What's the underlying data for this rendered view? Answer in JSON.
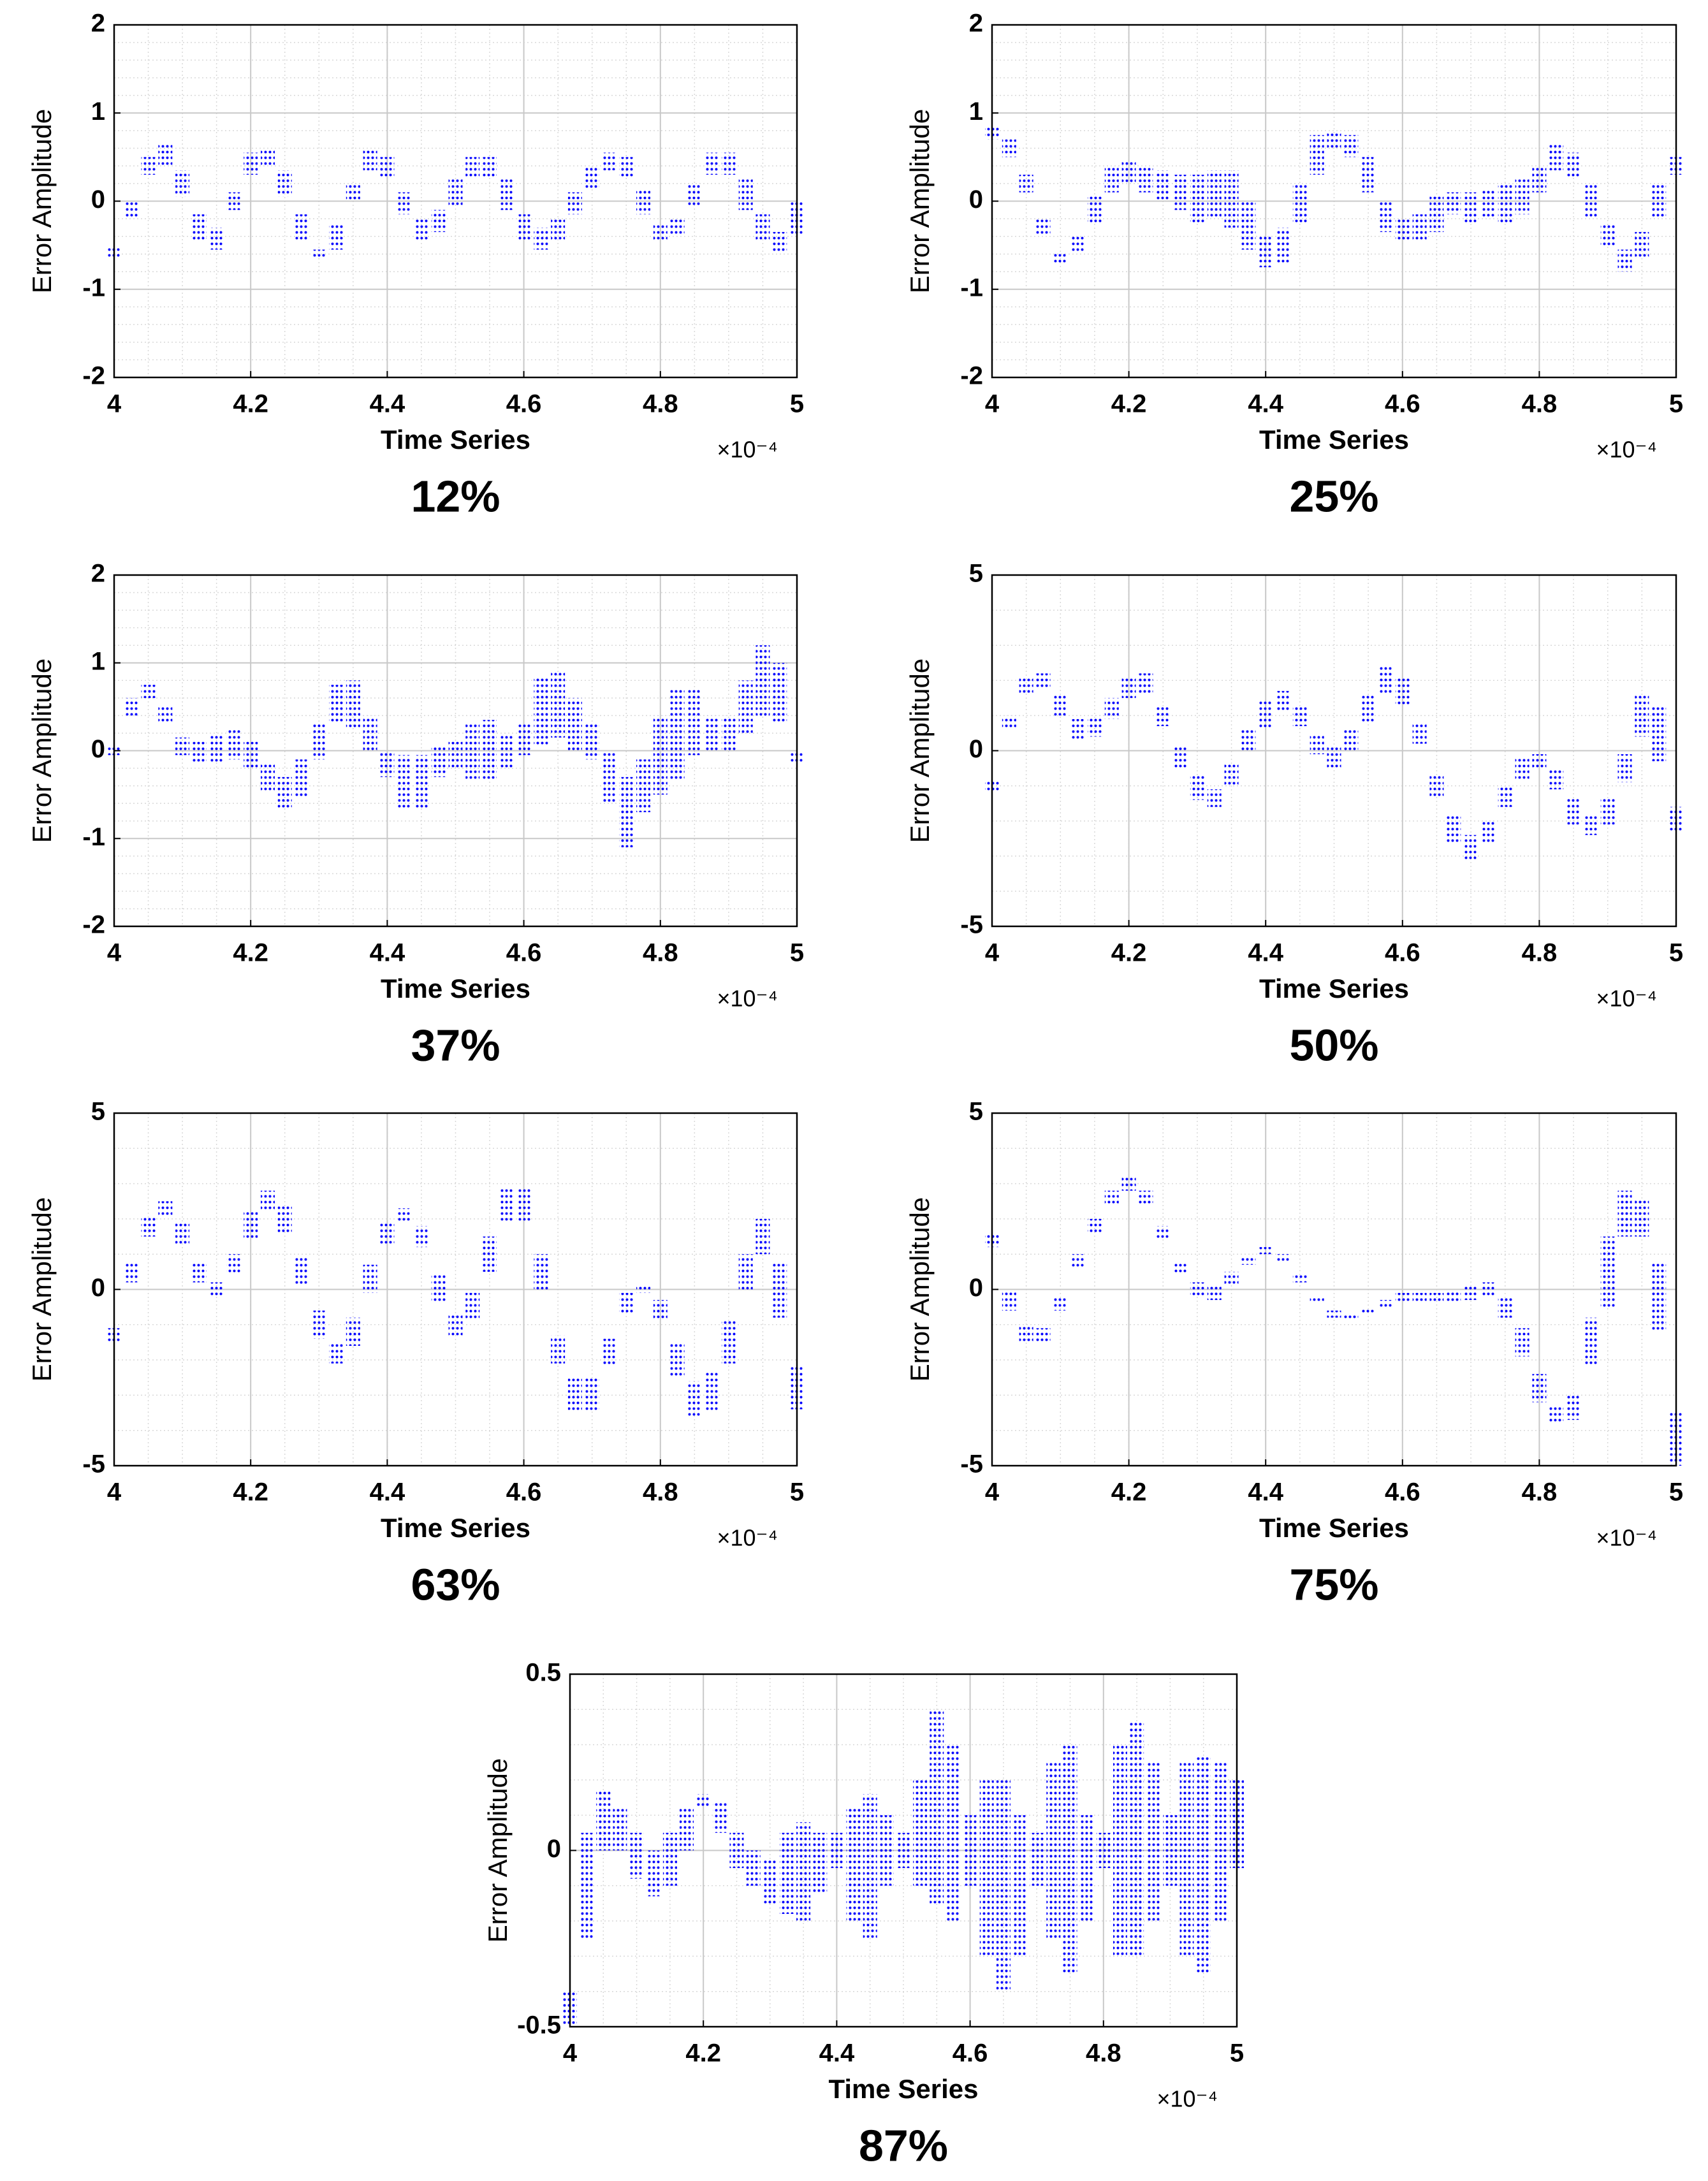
{
  "chart_data": [
    {
      "type": "range",
      "title": "12%",
      "x_label": "Time Series",
      "y_label": "Error Amplitude",
      "x_multiplier": "×10⁻⁴",
      "xlim": [
        4,
        5
      ],
      "xticks": [
        4,
        4.2,
        4.4,
        4.6,
        4.8,
        5
      ],
      "ylim": [
        -2,
        2
      ],
      "yticks": [
        -2,
        -1,
        0,
        1,
        2
      ],
      "grid": true,
      "minor_grid": true,
      "x": [
        4,
        4.025,
        4.05,
        4.075,
        4.1,
        4.125,
        4.15,
        4.175,
        4.2,
        4.225,
        4.25,
        4.275,
        4.3,
        4.325,
        4.35,
        4.375,
        4.4,
        4.425,
        4.45,
        4.475,
        4.5,
        4.525,
        4.55,
        4.575,
        4.6,
        4.625,
        4.65,
        4.675,
        4.7,
        4.725,
        4.75,
        4.775,
        4.8,
        4.825,
        4.85,
        4.875,
        4.9,
        4.925,
        4.95,
        4.975,
        5
      ],
      "series": [
        {
          "color": "#0000ff",
          "low": [
            -0.65,
            -0.2,
            0.3,
            0.4,
            0.05,
            -0.45,
            -0.55,
            -0.1,
            0.3,
            0.4,
            0.05,
            -0.45,
            -0.65,
            -0.55,
            0.0,
            0.35,
            0.25,
            -0.15,
            -0.45,
            -0.35,
            -0.05,
            0.25,
            0.25,
            -0.1,
            -0.45,
            -0.55,
            -0.45,
            -0.15,
            0.15,
            0.35,
            0.25,
            -0.15,
            -0.45,
            -0.4,
            -0.05,
            0.3,
            0.3,
            -0.1,
            -0.45,
            -0.6,
            -0.4
          ],
          "high": [
            -0.5,
            0.0,
            0.5,
            0.65,
            0.35,
            -0.15,
            -0.3,
            0.1,
            0.55,
            0.6,
            0.35,
            -0.15,
            -0.55,
            -0.25,
            0.2,
            0.6,
            0.5,
            0.1,
            -0.2,
            -0.1,
            0.25,
            0.5,
            0.5,
            0.25,
            -0.15,
            -0.3,
            -0.2,
            0.1,
            0.4,
            0.55,
            0.5,
            0.15,
            -0.25,
            -0.2,
            0.2,
            0.55,
            0.55,
            0.25,
            -0.15,
            -0.35,
            0.0
          ]
        }
      ]
    },
    {
      "type": "range",
      "title": "25%",
      "x_label": "Time Series",
      "y_label": "Error Amplitude",
      "x_multiplier": "×10⁻⁴",
      "xlim": [
        4,
        5
      ],
      "xticks": [
        4,
        4.2,
        4.4,
        4.6,
        4.8,
        5
      ],
      "ylim": [
        -2,
        2
      ],
      "yticks": [
        -2,
        -1,
        0,
        1,
        2
      ],
      "grid": true,
      "minor_grid": true,
      "x": [
        4,
        4.025,
        4.05,
        4.075,
        4.1,
        4.125,
        4.15,
        4.175,
        4.2,
        4.225,
        4.25,
        4.275,
        4.3,
        4.325,
        4.35,
        4.375,
        4.4,
        4.425,
        4.45,
        4.475,
        4.5,
        4.525,
        4.55,
        4.575,
        4.6,
        4.625,
        4.65,
        4.675,
        4.7,
        4.725,
        4.75,
        4.775,
        4.8,
        4.825,
        4.85,
        4.875,
        4.9,
        4.925,
        4.95,
        4.975,
        5
      ],
      "series": [
        {
          "color": "#0000ff",
          "low": [
            0.7,
            0.5,
            0.1,
            -0.4,
            -0.7,
            -0.6,
            -0.25,
            0.1,
            0.2,
            0.1,
            0.0,
            -0.1,
            -0.25,
            -0.2,
            -0.3,
            -0.55,
            -0.75,
            -0.7,
            -0.25,
            0.3,
            0.6,
            0.5,
            0.1,
            -0.35,
            -0.45,
            -0.45,
            -0.35,
            -0.15,
            -0.25,
            -0.2,
            -0.25,
            -0.15,
            0.1,
            0.35,
            0.25,
            -0.2,
            -0.5,
            -0.8,
            -0.65,
            -0.2,
            0.3
          ],
          "high": [
            0.85,
            0.7,
            0.3,
            -0.2,
            -0.6,
            -0.4,
            0.05,
            0.4,
            0.45,
            0.4,
            0.35,
            0.3,
            0.3,
            0.35,
            0.35,
            0.0,
            -0.4,
            -0.3,
            0.2,
            0.75,
            0.8,
            0.75,
            0.5,
            0.0,
            -0.2,
            -0.15,
            0.05,
            0.1,
            0.1,
            0.15,
            0.2,
            0.25,
            0.4,
            0.65,
            0.55,
            0.2,
            -0.25,
            -0.55,
            -0.35,
            0.2,
            0.5
          ]
        }
      ]
    },
    {
      "type": "range",
      "title": "37%",
      "x_label": "Time Series",
      "y_label": "Error Amplitude",
      "x_multiplier": "×10⁻⁴",
      "xlim": [
        4,
        5
      ],
      "xticks": [
        4,
        4.2,
        4.4,
        4.6,
        4.8,
        5
      ],
      "ylim": [
        -2,
        2
      ],
      "yticks": [
        -2,
        -1,
        0,
        1,
        2
      ],
      "grid": true,
      "minor_grid": true,
      "x": [
        4,
        4.025,
        4.05,
        4.075,
        4.1,
        4.125,
        4.15,
        4.175,
        4.2,
        4.225,
        4.25,
        4.275,
        4.3,
        4.325,
        4.35,
        4.375,
        4.4,
        4.425,
        4.45,
        4.475,
        4.5,
        4.525,
        4.55,
        4.575,
        4.6,
        4.625,
        4.65,
        4.675,
        4.7,
        4.725,
        4.75,
        4.775,
        4.8,
        4.825,
        4.85,
        4.875,
        4.9,
        4.925,
        4.95,
        4.975,
        5
      ],
      "series": [
        {
          "color": "#0000ff",
          "low": [
            -0.05,
            0.4,
            0.6,
            0.3,
            -0.05,
            -0.15,
            -0.15,
            -0.1,
            -0.2,
            -0.45,
            -0.65,
            -0.55,
            -0.1,
            0.3,
            0.25,
            0.0,
            -0.3,
            -0.65,
            -0.65,
            -0.3,
            -0.2,
            -0.35,
            -0.35,
            -0.2,
            -0.05,
            0.05,
            0.15,
            0.0,
            -0.1,
            -0.6,
            -1.1,
            -0.7,
            -0.5,
            -0.35,
            -0.05,
            0.0,
            0.0,
            0.2,
            0.4,
            0.3,
            -0.15
          ],
          "high": [
            0.05,
            0.6,
            0.75,
            0.5,
            0.15,
            0.1,
            0.2,
            0.25,
            0.1,
            -0.15,
            -0.3,
            -0.1,
            0.3,
            0.75,
            0.8,
            0.4,
            0.0,
            -0.05,
            -0.05,
            0.05,
            0.1,
            0.3,
            0.35,
            0.2,
            0.3,
            0.85,
            0.9,
            0.6,
            0.3,
            0.0,
            -0.3,
            -0.1,
            0.4,
            0.7,
            0.7,
            0.4,
            0.4,
            0.8,
            1.2,
            1.0,
            0.0
          ]
        }
      ]
    },
    {
      "type": "range",
      "title": "50%",
      "x_label": "Time Series",
      "y_label": "Error Amplitude",
      "x_multiplier": "×10⁻⁴",
      "xlim": [
        4,
        5
      ],
      "xticks": [
        4,
        4.2,
        4.4,
        4.6,
        4.8,
        5
      ],
      "ylim": [
        -5,
        5
      ],
      "yticks": [
        -5,
        0,
        5
      ],
      "grid": true,
      "minor_grid": true,
      "x": [
        4,
        4.025,
        4.05,
        4.075,
        4.1,
        4.125,
        4.15,
        4.175,
        4.2,
        4.225,
        4.25,
        4.275,
        4.3,
        4.325,
        4.35,
        4.375,
        4.4,
        4.425,
        4.45,
        4.475,
        4.5,
        4.525,
        4.55,
        4.575,
        4.6,
        4.625,
        4.65,
        4.675,
        4.7,
        4.725,
        4.75,
        4.775,
        4.8,
        4.825,
        4.85,
        4.875,
        4.9,
        4.925,
        4.95,
        4.975,
        5
      ],
      "series": [
        {
          "color": "#0000ff",
          "low": [
            -1.2,
            0.6,
            1.6,
            1.8,
            1.0,
            0.3,
            0.4,
            0.9,
            1.5,
            1.6,
            0.7,
            -0.5,
            -1.4,
            -1.6,
            -1.0,
            0.0,
            0.6,
            1.1,
            0.7,
            -0.1,
            -0.5,
            0.0,
            0.8,
            1.6,
            1.3,
            0.2,
            -1.3,
            -2.6,
            -3.1,
            -2.6,
            -1.6,
            -0.8,
            -0.5,
            -1.1,
            -2.1,
            -2.4,
            -2.1,
            -0.9,
            0.4,
            -0.3,
            -2.3
          ],
          "high": [
            -0.8,
            1.0,
            2.1,
            2.2,
            1.6,
            0.9,
            1.0,
            1.5,
            2.1,
            2.2,
            1.3,
            0.1,
            -0.7,
            -1.1,
            -0.4,
            0.6,
            1.4,
            1.7,
            1.3,
            0.5,
            0.1,
            0.6,
            1.6,
            2.4,
            2.1,
            0.8,
            -0.7,
            -1.8,
            -2.4,
            -2.0,
            -1.0,
            -0.2,
            -0.1,
            -0.5,
            -1.3,
            -1.8,
            -1.3,
            -0.1,
            1.6,
            1.3,
            -1.6
          ]
        }
      ]
    },
    {
      "type": "range",
      "title": "63%",
      "x_label": "Time Series",
      "y_label": "Error Amplitude",
      "x_multiplier": "×10⁻⁴",
      "xlim": [
        4,
        5
      ],
      "xticks": [
        4,
        4.2,
        4.4,
        4.6,
        4.8,
        5
      ],
      "ylim": [
        -5,
        5
      ],
      "yticks": [
        -5,
        0,
        5
      ],
      "grid": true,
      "minor_grid": true,
      "x": [
        4,
        4.025,
        4.05,
        4.075,
        4.1,
        4.125,
        4.15,
        4.175,
        4.2,
        4.225,
        4.25,
        4.275,
        4.3,
        4.325,
        4.35,
        4.375,
        4.4,
        4.425,
        4.45,
        4.475,
        4.5,
        4.525,
        4.55,
        4.575,
        4.6,
        4.625,
        4.65,
        4.675,
        4.7,
        4.725,
        4.75,
        4.775,
        4.8,
        4.825,
        4.85,
        4.875,
        4.9,
        4.925,
        4.95,
        4.975,
        5
      ],
      "series": [
        {
          "color": "#0000ff",
          "low": [
            -1.5,
            0.2,
            1.5,
            2.1,
            1.3,
            0.2,
            -0.2,
            0.4,
            1.4,
            2.2,
            1.6,
            0.1,
            -1.4,
            -2.1,
            -1.6,
            -0.1,
            1.3,
            1.9,
            1.2,
            -0.4,
            -1.3,
            -0.9,
            0.5,
            1.9,
            1.9,
            0.0,
            -2.1,
            -3.5,
            -3.5,
            -2.2,
            -0.7,
            -0.1,
            -0.9,
            -2.5,
            -3.6,
            -3.5,
            -2.1,
            0.0,
            1.0,
            -0.8,
            -3.4
          ],
          "high": [
            -1.1,
            0.8,
            2.1,
            2.5,
            1.9,
            0.8,
            0.2,
            1.0,
            2.2,
            2.8,
            2.4,
            0.9,
            -0.6,
            -1.5,
            -0.8,
            0.7,
            1.9,
            2.3,
            1.8,
            0.4,
            -0.7,
            -0.1,
            1.5,
            2.9,
            2.9,
            1.0,
            -1.3,
            -2.5,
            -2.5,
            -1.4,
            -0.1,
            0.1,
            -0.3,
            -1.5,
            -2.6,
            -2.3,
            -0.9,
            1.0,
            2.0,
            0.8,
            -2.2
          ]
        }
      ]
    },
    {
      "type": "range",
      "title": "75%",
      "x_label": "Time Series",
      "y_label": "Error Amplitude",
      "x_multiplier": "×10⁻⁴",
      "xlim": [
        4,
        5
      ],
      "xticks": [
        4,
        4.2,
        4.4,
        4.6,
        4.8,
        5
      ],
      "ylim": [
        -5,
        5
      ],
      "yticks": [
        -5,
        0,
        5
      ],
      "grid": true,
      "minor_grid": true,
      "x": [
        4,
        4.025,
        4.05,
        4.075,
        4.1,
        4.125,
        4.15,
        4.175,
        4.2,
        4.225,
        4.25,
        4.275,
        4.3,
        4.325,
        4.35,
        4.375,
        4.4,
        4.425,
        4.45,
        4.475,
        4.5,
        4.525,
        4.55,
        4.575,
        4.6,
        4.625,
        4.65,
        4.675,
        4.7,
        4.725,
        4.75,
        4.775,
        4.8,
        4.825,
        4.85,
        4.875,
        4.9,
        4.925,
        4.95,
        4.975,
        5
      ],
      "series": [
        {
          "color": "#0000ff",
          "low": [
            1.2,
            -0.6,
            -1.5,
            -1.5,
            -0.6,
            0.6,
            1.6,
            2.4,
            2.8,
            2.4,
            1.4,
            0.4,
            -0.2,
            -0.3,
            0.1,
            0.7,
            1.0,
            0.8,
            0.2,
            -0.4,
            -0.8,
            -0.9,
            -0.7,
            -0.5,
            -0.4,
            -0.4,
            -0.4,
            -0.4,
            -0.3,
            -0.2,
            -0.8,
            -1.9,
            -3.2,
            -3.8,
            -3.7,
            -2.2,
            -0.5,
            1.5,
            1.5,
            -1.2,
            -5.0
          ],
          "high": [
            1.6,
            0.0,
            -1.0,
            -1.1,
            -0.2,
            1.0,
            2.0,
            2.8,
            3.2,
            2.8,
            1.8,
            0.8,
            0.2,
            0.1,
            0.5,
            0.9,
            1.2,
            1.0,
            0.4,
            -0.2,
            -0.6,
            -0.7,
            -0.5,
            -0.3,
            -0.1,
            -0.1,
            -0.1,
            -0.05,
            0.1,
            0.2,
            -0.2,
            -1.1,
            -2.4,
            -3.3,
            -3.0,
            -0.8,
            1.5,
            2.8,
            2.6,
            0.8,
            -3.5
          ]
        }
      ]
    },
    {
      "type": "range",
      "title": "87%",
      "x_label": "Time Series",
      "y_label": "Error Amplitude",
      "x_multiplier": "×10⁻⁴",
      "xlim": [
        4,
        5
      ],
      "xticks": [
        4,
        4.2,
        4.4,
        4.6,
        4.8,
        5
      ],
      "ylim": [
        -0.5,
        0.5
      ],
      "yticks": [
        -0.5,
        0,
        0.5
      ],
      "grid": true,
      "minor_grid": true,
      "x": [
        4,
        4.025,
        4.05,
        4.075,
        4.1,
        4.125,
        4.15,
        4.175,
        4.2,
        4.225,
        4.25,
        4.275,
        4.3,
        4.325,
        4.35,
        4.375,
        4.4,
        4.425,
        4.45,
        4.475,
        4.5,
        4.525,
        4.55,
        4.575,
        4.6,
        4.625,
        4.65,
        4.675,
        4.7,
        4.725,
        4.75,
        4.775,
        4.8,
        4.825,
        4.85,
        4.875,
        4.9,
        4.925,
        4.95,
        4.975,
        5
      ],
      "series": [
        {
          "color": "#0000ff",
          "low": [
            -0.5,
            -0.25,
            0.0,
            0.0,
            -0.08,
            -0.13,
            -0.1,
            0.0,
            0.12,
            0.05,
            -0.05,
            -0.1,
            -0.15,
            -0.18,
            -0.2,
            -0.12,
            -0.05,
            -0.2,
            -0.25,
            -0.1,
            -0.05,
            -0.1,
            -0.15,
            -0.2,
            -0.1,
            -0.3,
            -0.4,
            -0.3,
            -0.1,
            -0.25,
            -0.35,
            -0.2,
            -0.05,
            -0.3,
            -0.3,
            -0.2,
            -0.1,
            -0.3,
            -0.35,
            -0.2,
            -0.05
          ],
          "high": [
            -0.4,
            0.05,
            0.17,
            0.12,
            0.05,
            0.0,
            0.05,
            0.12,
            0.16,
            0.14,
            0.05,
            0.0,
            -0.02,
            0.05,
            0.08,
            0.05,
            0.05,
            0.12,
            0.16,
            0.1,
            0.05,
            0.2,
            0.4,
            0.3,
            0.1,
            0.2,
            0.2,
            0.1,
            0.05,
            0.25,
            0.3,
            0.1,
            0.05,
            0.3,
            0.37,
            0.25,
            0.1,
            0.25,
            0.27,
            0.25,
            0.2
          ]
        }
      ]
    }
  ]
}
